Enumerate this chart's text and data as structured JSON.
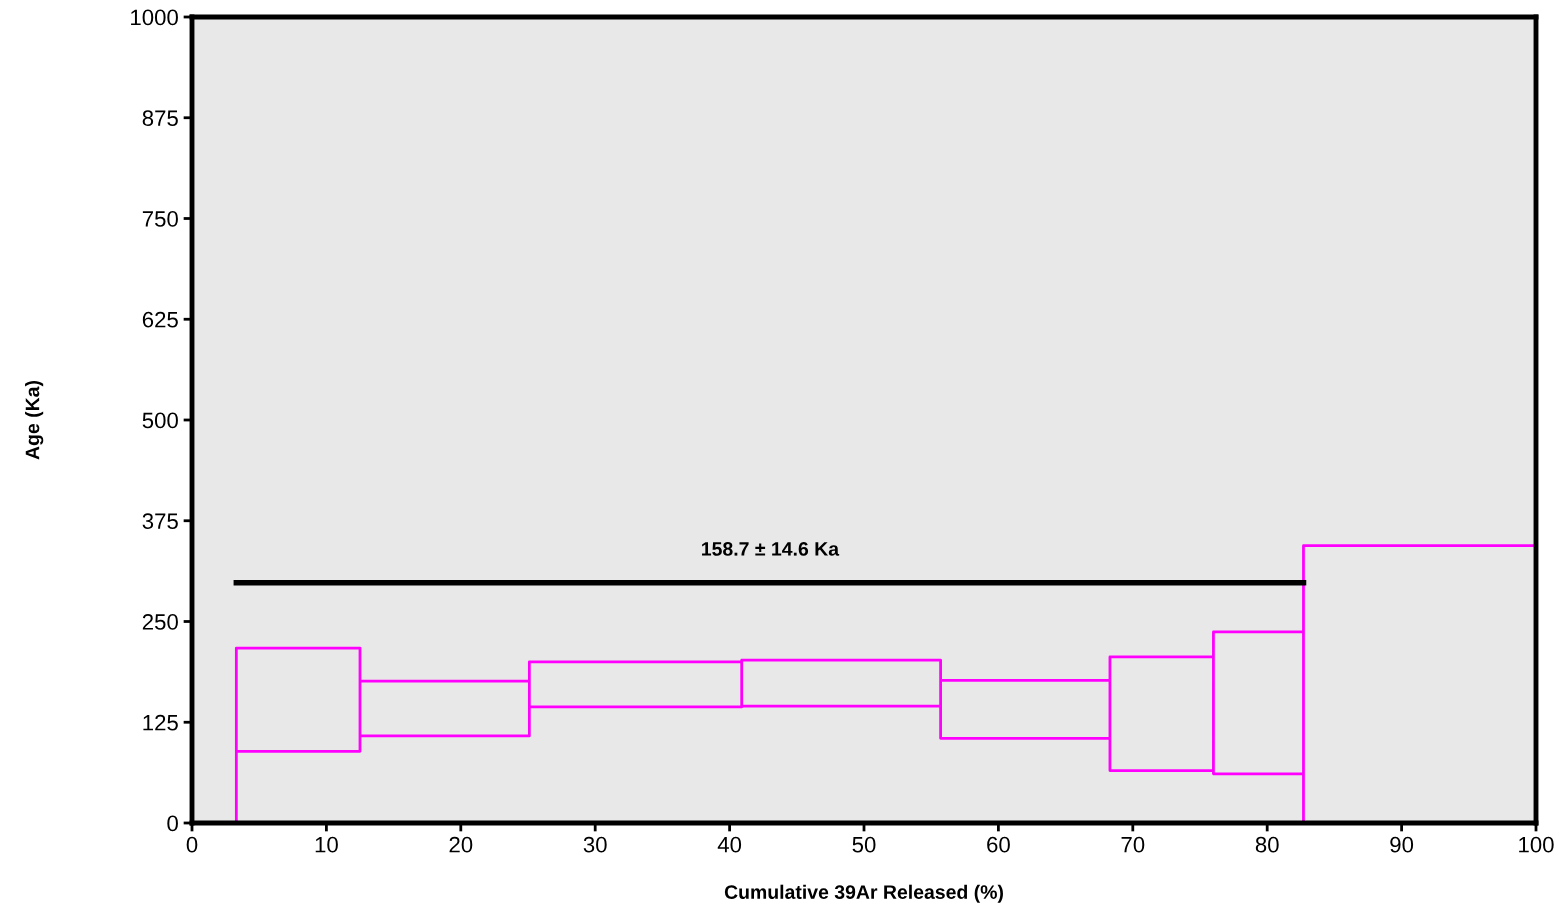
{
  "chart_data": {
    "type": "line",
    "xlabel": "Cumulative 39Ar Released (%)",
    "ylabel": "Age (Ka)",
    "xlim": [
      0,
      100
    ],
    "ylim": [
      0,
      1000
    ],
    "xticks": [
      0,
      10,
      20,
      30,
      40,
      50,
      60,
      70,
      80,
      90,
      100
    ],
    "yticks": [
      0,
      125,
      250,
      375,
      500,
      625,
      750,
      875,
      1000
    ],
    "annotations": [
      "158.7 ± 14.6 Ka"
    ],
    "series": [
      {
        "color": "#ff00ff",
        "x": [
          0,
          3.3,
          3.3,
          3.3,
          12.5,
          12.5,
          3.3,
          12.5,
          12.5,
          12.5,
          25.1,
          25.1,
          12.5,
          25.1,
          25.1,
          25.1,
          40.9,
          40.9,
          25.1,
          40.9,
          40.9,
          40.9,
          55.7,
          55.7,
          40.9,
          55.7,
          55.7,
          55.7,
          68.3,
          68.3,
          55.7,
          68.3,
          68.3,
          68.3,
          76.0,
          76.0,
          68.3,
          76.0,
          76.0,
          76.0,
          82.7,
          82.7,
          76.0,
          82.7,
          82.7,
          82.7,
          100
        ],
        "values": [
          0,
          0,
          89,
          217,
          217,
          89,
          89,
          89,
          108,
          176,
          176,
          108,
          108,
          108,
          144,
          200,
          200,
          144,
          144,
          144,
          145,
          202,
          202,
          145,
          145,
          145,
          105,
          177,
          177,
          105,
          105,
          105,
          65,
          206,
          206,
          65,
          65,
          65,
          61,
          237,
          237,
          61,
          61,
          61,
          0,
          344,
          344
        ]
      },
      {
        "color": "#000000",
        "x": [
          3.3,
          82.7
        ],
        "values": [
          298,
          298
        ]
      }
    ]
  }
}
